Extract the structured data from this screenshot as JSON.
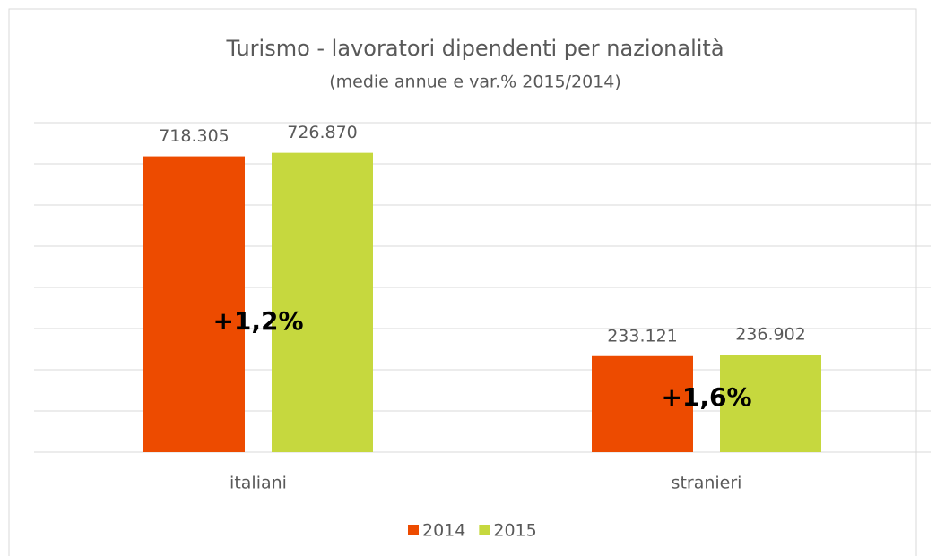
{
  "chart_data": {
    "type": "bar",
    "title": "Turismo - lavoratori dipendenti per nazionalità",
    "subtitle": "(medie annue e var.% 2015/2014)",
    "categories": [
      "italiani",
      "stranieri"
    ],
    "series": [
      {
        "name": "2014",
        "color": "#ed4b00",
        "values": [
          718305,
          233121
        ],
        "value_labels": [
          "718.305",
          "233.121"
        ]
      },
      {
        "name": "2015",
        "color": "#c6d83e",
        "values": [
          726870,
          236902
        ],
        "value_labels": [
          "726.870",
          "236.902"
        ]
      }
    ],
    "annotations": [
      "+1,2%",
      "+1,6%"
    ],
    "ylim": [
      0,
      800000
    ],
    "yticks": [
      0,
      100000,
      200000,
      300000,
      400000,
      500000,
      600000,
      700000,
      800000
    ],
    "grid": true,
    "legend": "bottom"
  }
}
